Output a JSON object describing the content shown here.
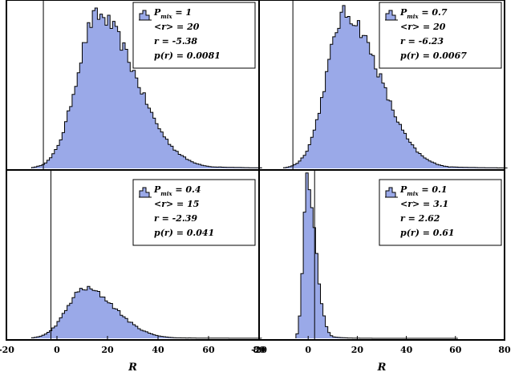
{
  "chart_data": [
    {
      "type": "histogram",
      "panel": "top-left",
      "legend": {
        "symbol": "histogram-icon",
        "p_mix_label": "P",
        "p_mix_sub": "mix",
        "p_mix_value": " = 1",
        "lines": [
          "<r> = 20",
          "r = -5.38",
          "p(r) = 0.0081"
        ]
      },
      "observed_r": -5.38,
      "distribution": {
        "mode": 16,
        "peak": 0.92,
        "sigma_left": 8,
        "sigma_right": 15,
        "start": -10,
        "end": 80
      }
    },
    {
      "type": "histogram",
      "panel": "top-right",
      "legend": {
        "symbol": "histogram-icon",
        "p_mix_label": "P",
        "p_mix_sub": "mix",
        "p_mix_value": " = 0.7",
        "lines": [
          "<r> = 20",
          "r = -6.23",
          "p(r) = 0.0067"
        ]
      },
      "observed_r": -6.23,
      "distribution": {
        "mode": 15,
        "peak": 0.93,
        "sigma_left": 7.5,
        "sigma_right": 14,
        "start": -10,
        "end": 80
      }
    },
    {
      "type": "histogram",
      "panel": "bottom-left",
      "legend": {
        "symbol": "histogram-icon",
        "p_mix_label": "P",
        "p_mix_sub": "mix",
        "p_mix_value": " = 0.4",
        "lines": [
          "<r> = 15",
          "r = -2.39",
          "p(r) = 0.041"
        ]
      },
      "observed_r": -2.39,
      "distribution": {
        "mode": 11,
        "peak": 0.3,
        "sigma_left": 7,
        "sigma_right": 12,
        "start": -10,
        "end": 80
      }
    },
    {
      "type": "histogram",
      "panel": "bottom-right",
      "legend": {
        "symbol": "histogram-icon",
        "p_mix_label": "P",
        "p_mix_sub": "mix",
        "p_mix_value": " = 0.1",
        "lines": [
          "<r> = 3.1",
          "r = 2.62",
          "p(r) = 0.61"
        ]
      },
      "observed_r": 2.62,
      "distribution": {
        "mode": -0.5,
        "peak": 0.96,
        "sigma_left": 1.5,
        "sigma_right": 3.5,
        "start": -5,
        "end": 60
      }
    }
  ],
  "x_axis": {
    "label": "R",
    "range": [
      -20,
      80
    ],
    "ticks": [
      "-20",
      "0",
      "20",
      "40",
      "60",
      "80"
    ]
  },
  "style": {
    "fill_color": "#9aa9e8",
    "outline_color": "#000000",
    "line_color": "#000000"
  }
}
